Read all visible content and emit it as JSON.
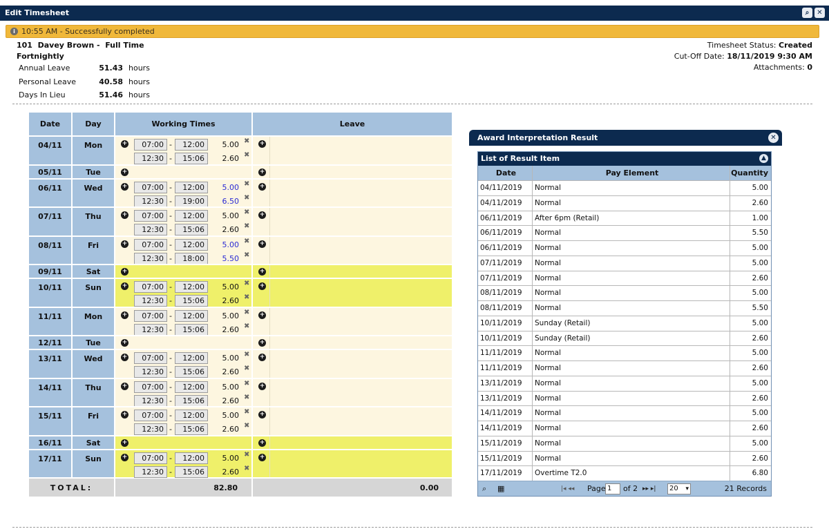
{
  "window": {
    "title": "Edit Timesheet"
  },
  "notice": {
    "text": "10:55 AM - Successfully completed"
  },
  "employee": {
    "line1": "101  Davey Brown -  Full Time",
    "line2": "Fortnightly"
  },
  "leave_balances": [
    {
      "name": "Annual Leave",
      "value": "51.43",
      "unit": "hours"
    },
    {
      "name": "Personal Leave",
      "value": "40.58",
      "unit": "hours"
    },
    {
      "name": "Days In Lieu",
      "value": "51.46",
      "unit": "hours"
    }
  ],
  "status": {
    "status_label": "Timesheet Status:",
    "status_value": "Created",
    "cutoff_label": "Cut-Off Date:",
    "cutoff_value": "18/11/2019 9:30 AM",
    "attach_label": "Attachments:",
    "attach_value": "0"
  },
  "timesheet": {
    "headers": {
      "date": "Date",
      "day": "Day",
      "work": "Working Times",
      "leave": "Leave"
    },
    "rows": [
      {
        "date": "04/11",
        "day": "Mon",
        "bg": "cream",
        "shifts": [
          {
            "start": "07:00",
            "end": "12:00",
            "hours": "5.00",
            "blue": false
          },
          {
            "start": "12:30",
            "end": "15:06",
            "hours": "2.60",
            "blue": false
          }
        ]
      },
      {
        "date": "05/11",
        "day": "Tue",
        "bg": "cream",
        "shifts": []
      },
      {
        "date": "06/11",
        "day": "Wed",
        "bg": "white",
        "shifts": [
          {
            "start": "07:00",
            "end": "12:00",
            "hours": "5.00",
            "blue": true
          },
          {
            "start": "12:30",
            "end": "19:00",
            "hours": "6.50",
            "blue": true
          }
        ]
      },
      {
        "date": "07/11",
        "day": "Thu",
        "bg": "cream",
        "shifts": [
          {
            "start": "07:00",
            "end": "12:00",
            "hours": "5.00",
            "blue": false
          },
          {
            "start": "12:30",
            "end": "15:06",
            "hours": "2.60",
            "blue": false
          }
        ]
      },
      {
        "date": "08/11",
        "day": "Fri",
        "bg": "white",
        "shifts": [
          {
            "start": "07:00",
            "end": "12:00",
            "hours": "5.00",
            "blue": true
          },
          {
            "start": "12:30",
            "end": "18:00",
            "hours": "5.50",
            "blue": true
          }
        ]
      },
      {
        "date": "09/11",
        "day": "Sat",
        "bg": "yellow",
        "shifts": []
      },
      {
        "date": "10/11",
        "day": "Sun",
        "bg": "yellow",
        "shifts": [
          {
            "start": "07:00",
            "end": "12:00",
            "hours": "5.00",
            "blue": false
          },
          {
            "start": "12:30",
            "end": "15:06",
            "hours": "2.60",
            "blue": false
          }
        ]
      },
      {
        "date": "11/11",
        "day": "Mon",
        "bg": "white",
        "shifts": [
          {
            "start": "07:00",
            "end": "12:00",
            "hours": "5.00",
            "blue": false
          },
          {
            "start": "12:30",
            "end": "15:06",
            "hours": "2.60",
            "blue": false
          }
        ]
      },
      {
        "date": "12/11",
        "day": "Tue",
        "bg": "cream",
        "shifts": []
      },
      {
        "date": "13/11",
        "day": "Wed",
        "bg": "white",
        "shifts": [
          {
            "start": "07:00",
            "end": "12:00",
            "hours": "5.00",
            "blue": false
          },
          {
            "start": "12:30",
            "end": "15:06",
            "hours": "2.60",
            "blue": false
          }
        ]
      },
      {
        "date": "14/11",
        "day": "Thu",
        "bg": "cream",
        "shifts": [
          {
            "start": "07:00",
            "end": "12:00",
            "hours": "5.00",
            "blue": false
          },
          {
            "start": "12:30",
            "end": "15:06",
            "hours": "2.60",
            "blue": false
          }
        ]
      },
      {
        "date": "15/11",
        "day": "Fri",
        "bg": "white",
        "shifts": [
          {
            "start": "07:00",
            "end": "12:00",
            "hours": "5.00",
            "blue": false
          },
          {
            "start": "12:30",
            "end": "15:06",
            "hours": "2.60",
            "blue": false
          }
        ]
      },
      {
        "date": "16/11",
        "day": "Sat",
        "bg": "yellow",
        "shifts": []
      },
      {
        "date": "17/11",
        "day": "Sun",
        "bg": "yellow",
        "shifts": [
          {
            "start": "07:00",
            "end": "12:00",
            "hours": "5.00",
            "blue": false
          },
          {
            "start": "12:30",
            "end": "15:06",
            "hours": "2.60",
            "blue": false
          }
        ]
      }
    ],
    "total_label": "TOTAL:",
    "total_work": "82.80",
    "total_leave": "0.00"
  },
  "award": {
    "title": "Award Interpretation Result",
    "list_title": "List of Result Item",
    "headers": {
      "date": "Date",
      "pay": "Pay Element",
      "qty": "Quantity"
    },
    "rows": [
      {
        "date": "04/11/2019",
        "pay": "Normal",
        "qty": "5.00"
      },
      {
        "date": "04/11/2019",
        "pay": "Normal",
        "qty": "2.60"
      },
      {
        "date": "06/11/2019",
        "pay": "After 6pm (Retail)",
        "qty": "1.00"
      },
      {
        "date": "06/11/2019",
        "pay": "Normal",
        "qty": "5.50"
      },
      {
        "date": "06/11/2019",
        "pay": "Normal",
        "qty": "5.00"
      },
      {
        "date": "07/11/2019",
        "pay": "Normal",
        "qty": "5.00"
      },
      {
        "date": "07/11/2019",
        "pay": "Normal",
        "qty": "2.60"
      },
      {
        "date": "08/11/2019",
        "pay": "Normal",
        "qty": "5.00"
      },
      {
        "date": "08/11/2019",
        "pay": "Normal",
        "qty": "5.50"
      },
      {
        "date": "10/11/2019",
        "pay": "Sunday (Retail)",
        "qty": "5.00"
      },
      {
        "date": "10/11/2019",
        "pay": "Sunday (Retail)",
        "qty": "2.60"
      },
      {
        "date": "11/11/2019",
        "pay": "Normal",
        "qty": "5.00"
      },
      {
        "date": "11/11/2019",
        "pay": "Normal",
        "qty": "2.60"
      },
      {
        "date": "13/11/2019",
        "pay": "Normal",
        "qty": "5.00"
      },
      {
        "date": "13/11/2019",
        "pay": "Normal",
        "qty": "2.60"
      },
      {
        "date": "14/11/2019",
        "pay": "Normal",
        "qty": "5.00"
      },
      {
        "date": "14/11/2019",
        "pay": "Normal",
        "qty": "2.60"
      },
      {
        "date": "15/11/2019",
        "pay": "Normal",
        "qty": "5.00"
      },
      {
        "date": "15/11/2019",
        "pay": "Normal",
        "qty": "2.60"
      },
      {
        "date": "17/11/2019",
        "pay": "Overtime T2.0",
        "qty": "6.80"
      }
    ],
    "pager": {
      "page_label": "Page",
      "page_value": "1",
      "of_label": "of 2",
      "page_size": "20",
      "records": "21 Records"
    }
  },
  "colors": {
    "navy": "#0c2a4f",
    "header_blue": "#a5c1dd",
    "cream": "#fdf6e0",
    "weekend_yellow": "#eff06a",
    "notice": "#f0b83a",
    "blue_hours": "#2b2bd4"
  },
  "icons": {
    "add": "add-circle-icon",
    "delete": "delete-x-icon",
    "close": "close-icon",
    "info": "info-icon",
    "search": "search-icon",
    "collapse": "collapse-up-icon"
  }
}
